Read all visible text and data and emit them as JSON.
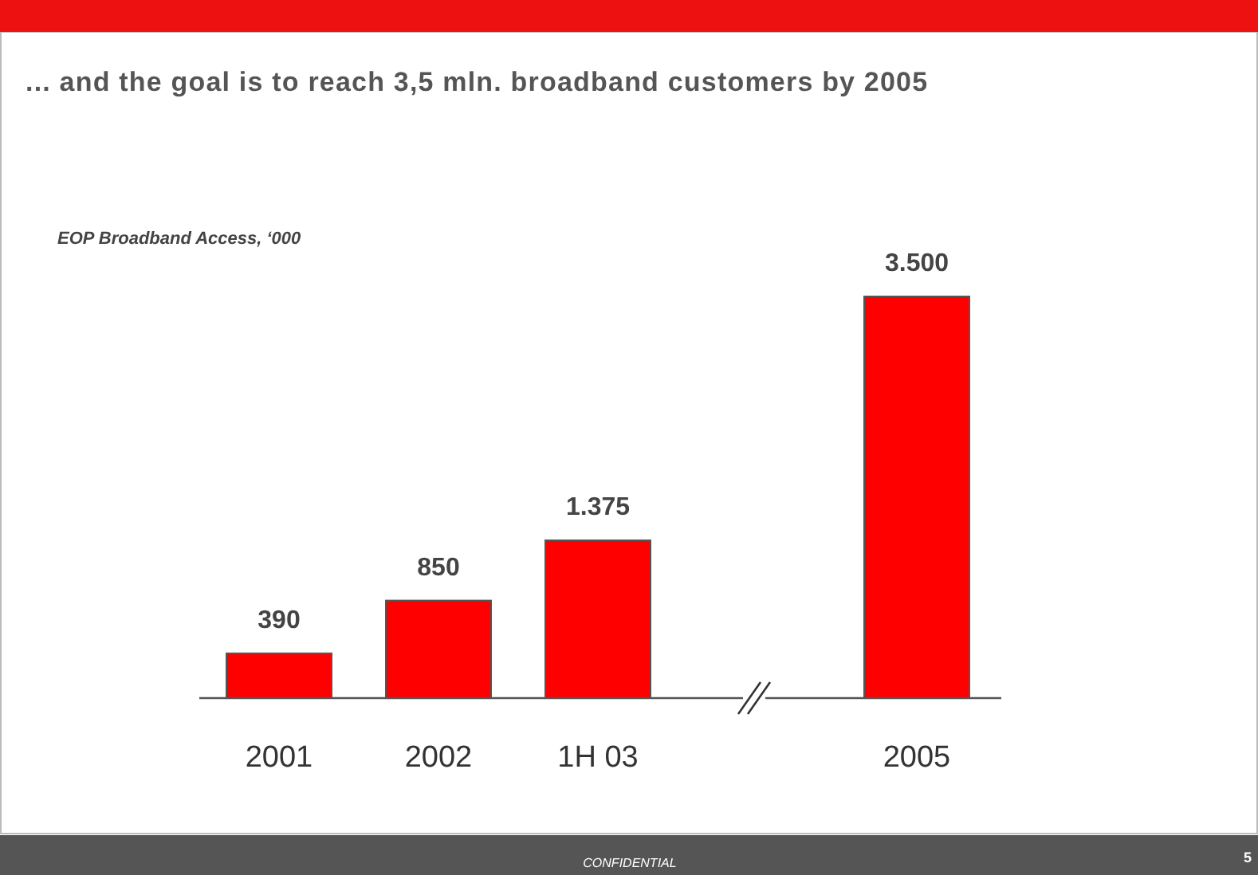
{
  "chart_data": {
    "type": "bar",
    "title": "... and the goal is to reach 3,5 mln. broadband customers by 2005",
    "subtitle": "EOP Broadband Access, ‘000",
    "categories": [
      "2001",
      "2002",
      "1H 03",
      null,
      "2005"
    ],
    "values": [
      390,
      850,
      1375,
      null,
      3500
    ],
    "value_labels": [
      "390",
      "850",
      "1.375",
      null,
      "3.500"
    ],
    "color": "#ff0000",
    "annotations": [
      "CONFIDENTIAL",
      "5"
    ]
  }
}
